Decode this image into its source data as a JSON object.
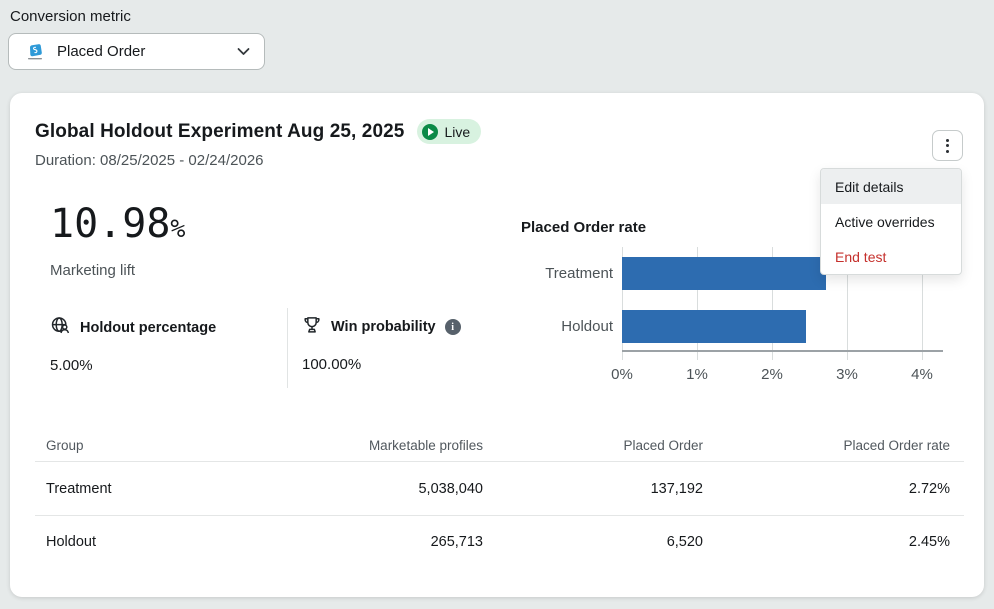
{
  "conversion_metric": {
    "label": "Conversion metric",
    "selected": "Placed Order"
  },
  "experiment": {
    "title": "Global Holdout Experiment Aug 25, 2025",
    "status": "Live",
    "duration": "Duration: 08/25/2025 - 02/24/2026"
  },
  "menu": {
    "items": [
      {
        "label": "Edit details"
      },
      {
        "label": "Active overrides"
      },
      {
        "label": "End test"
      }
    ]
  },
  "stats": {
    "marketing_lift_value": "10.98",
    "marketing_lift_unit": "%",
    "marketing_lift_label": "Marketing lift",
    "holdout_percentage_label": "Holdout percentage",
    "holdout_percentage_value": "5.00%",
    "win_probability_label": "Win probability",
    "win_probability_value": "100.00%"
  },
  "chart_data": {
    "type": "bar",
    "orientation": "horizontal",
    "title": "Placed Order rate",
    "categories": [
      "Treatment",
      "Holdout"
    ],
    "values": [
      2.72,
      2.45
    ],
    "value_unit": "%",
    "x_ticks": [
      "0%",
      "1%",
      "2%",
      "3%",
      "4%"
    ],
    "xlim": [
      0,
      4.28
    ],
    "grid": true,
    "bar_color": "#2D6CB0"
  },
  "table": {
    "headers": [
      "Group",
      "Marketable profiles",
      "Placed Order",
      "Placed Order rate"
    ],
    "rows": [
      {
        "group": "Treatment",
        "marketable_profiles": "5,038,040",
        "placed_order": "137,192",
        "rate": "2.72%"
      },
      {
        "group": "Holdout",
        "marketable_profiles": "265,713",
        "placed_order": "6,520",
        "rate": "2.45%"
      }
    ]
  },
  "colors": {
    "page_bg": "#E6EAEA",
    "bar_blue": "#2D6CB0",
    "live_green": "#0B8A47",
    "live_badge_bg": "#D8F2E0",
    "danger_red": "#C5302C"
  }
}
